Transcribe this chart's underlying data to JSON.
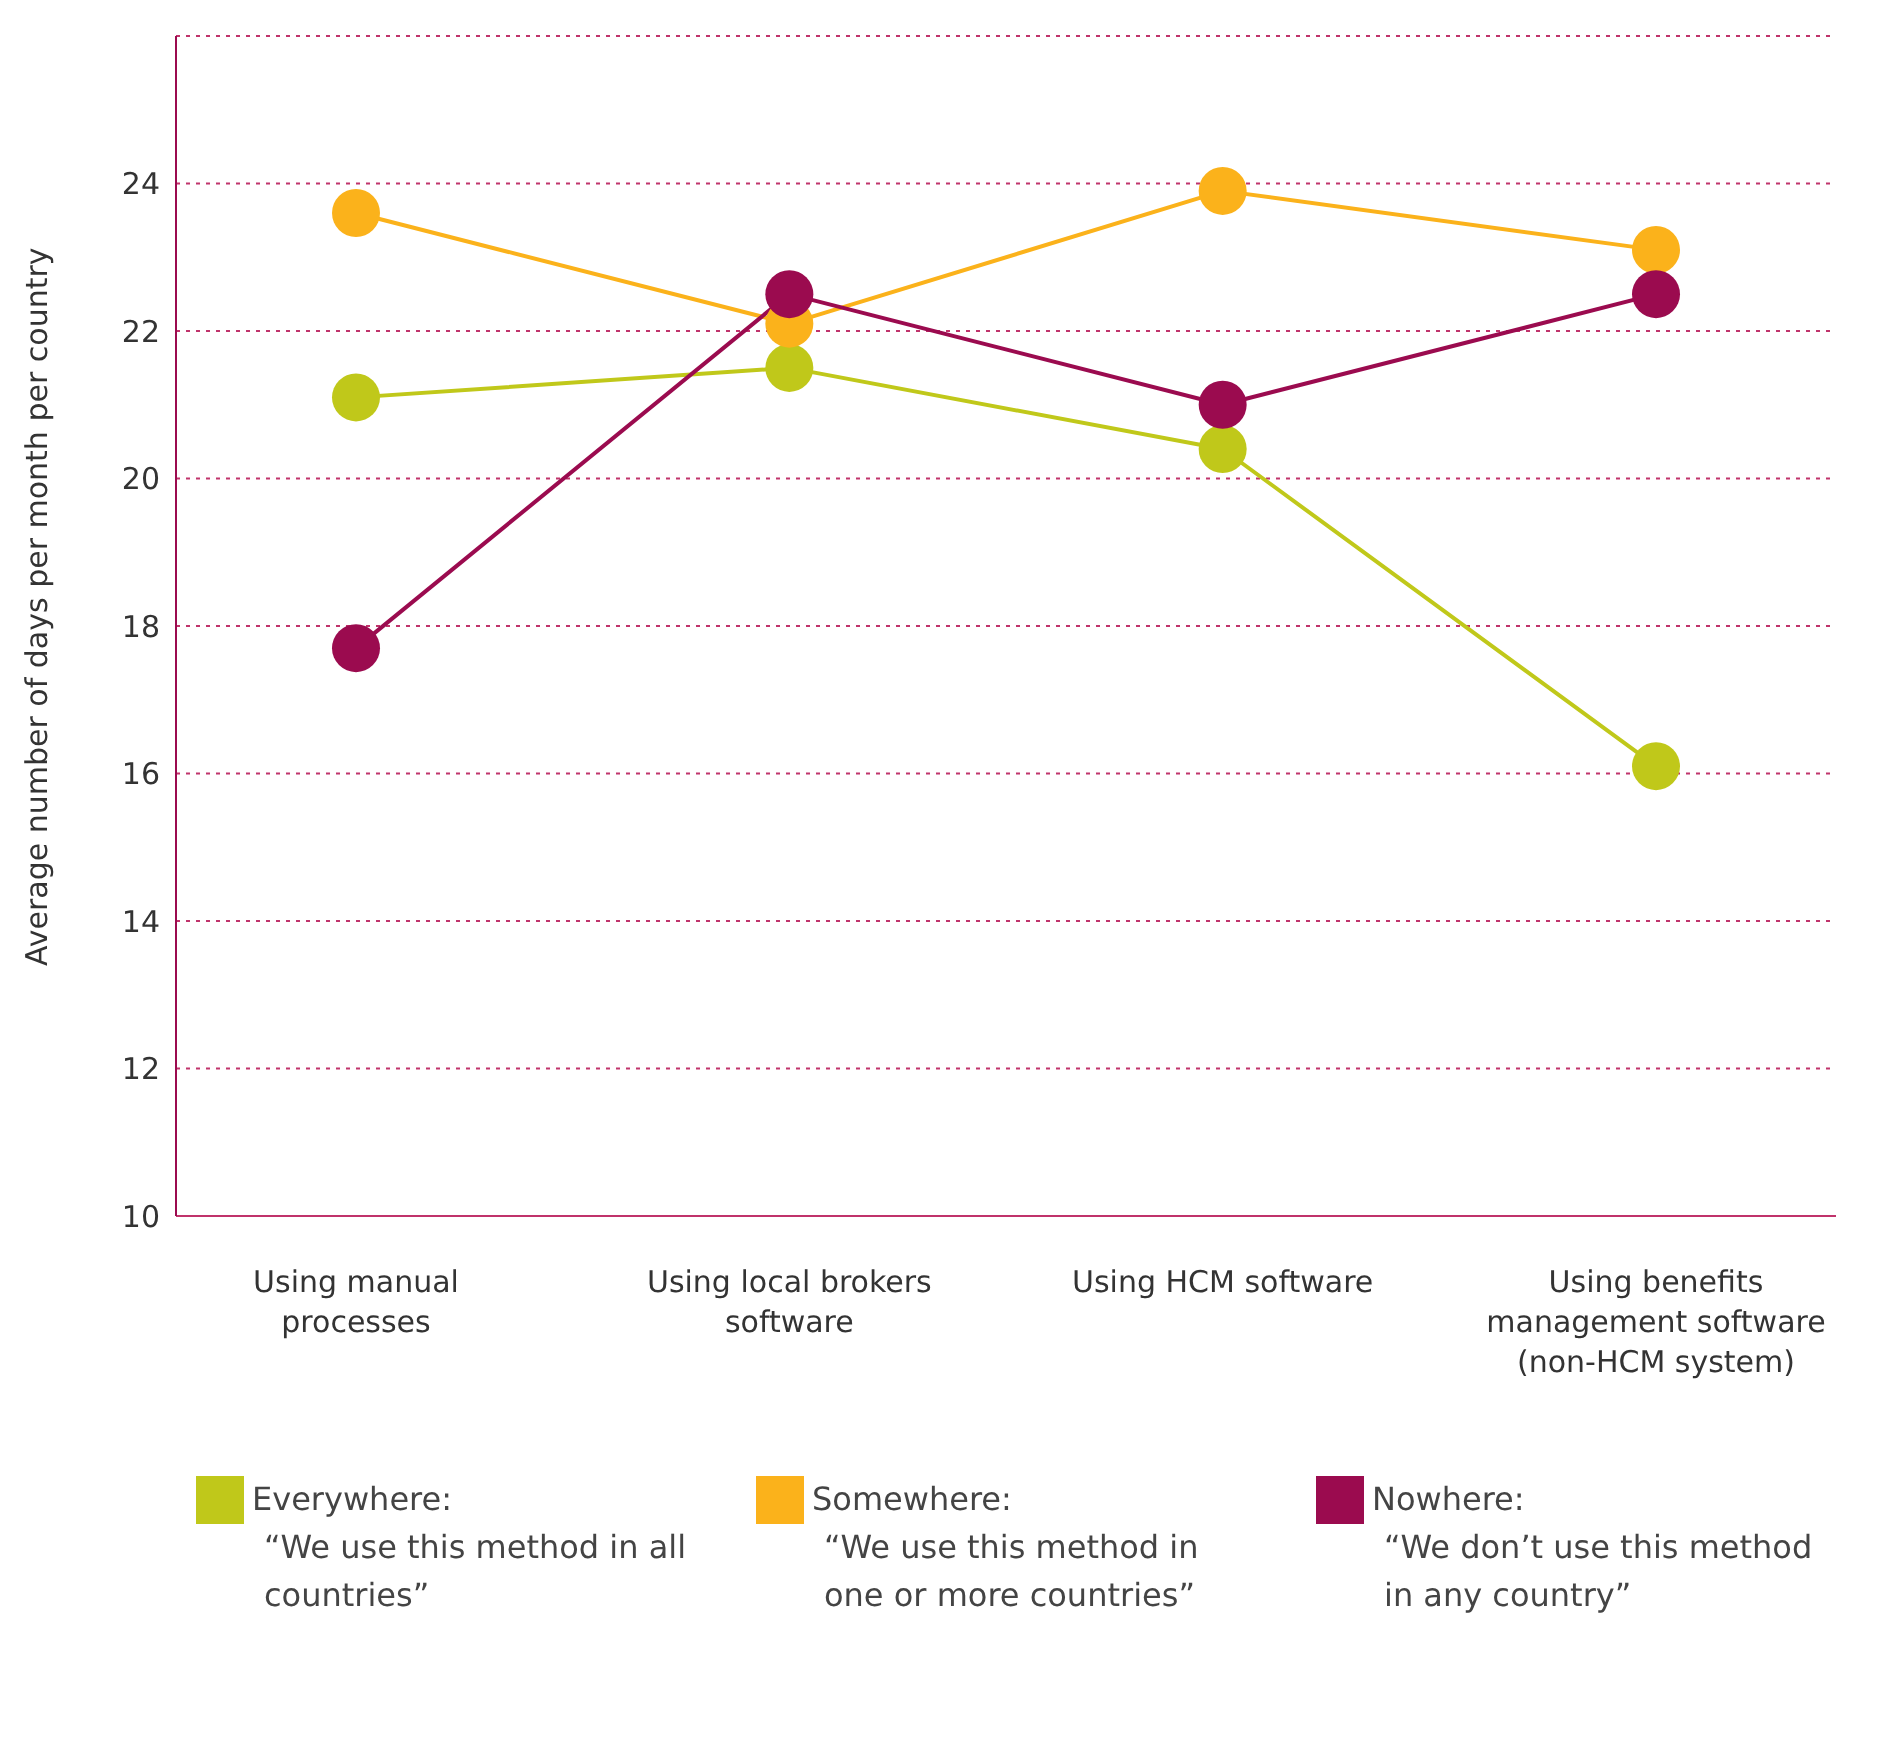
{
  "chart_data": {
    "type": "line",
    "ylabel": "Average number of days per month per country",
    "categories": [
      "Using manual processes",
      "Using local brokers software",
      "Using HCM software",
      "Using benefits management software (non-HCM system)"
    ],
    "series": [
      {
        "name": "Everywhere:\n“We use this method in all countries”",
        "color": "#c0c81a",
        "values": [
          21.1,
          21.5,
          20.4,
          16.1
        ]
      },
      {
        "name": "Somewhere:\n“We use this method in one or more countries”",
        "color": "#fbb21b",
        "values": [
          23.6,
          22.1,
          23.9,
          23.1
        ]
      },
      {
        "name": "Nowhere:\n“We don’t use this method in any country”",
        "color": "#9b0b4f",
        "values": [
          17.7,
          22.5,
          21.0,
          22.5
        ]
      }
    ],
    "ylim": [
      10,
      26
    ],
    "yticks": [
      10,
      12,
      14,
      16,
      18,
      20,
      22,
      24,
      {
        "value": 26,
        "label": null
      }
    ],
    "grid": "y",
    "legend": "bottom",
    "marker": "circle",
    "line_style": "solid"
  }
}
